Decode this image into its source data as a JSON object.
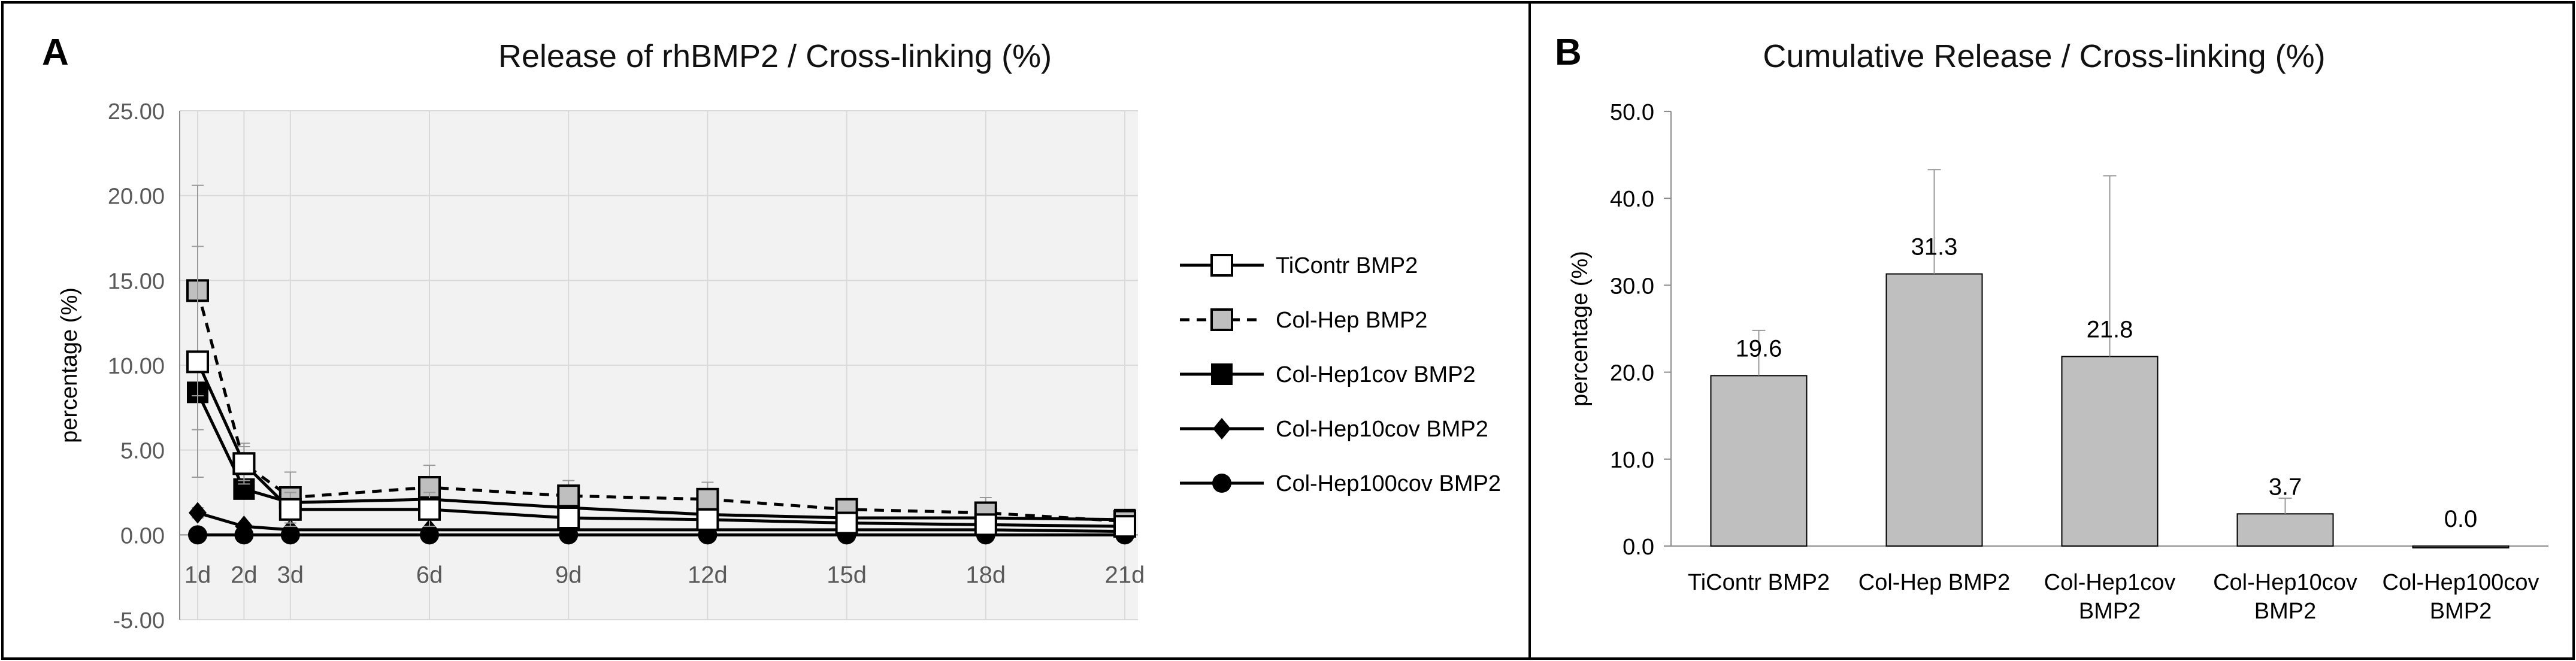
{
  "chart_data": [
    {
      "panel": "A",
      "type": "line",
      "title": "Release of rhBMP2 / Cross-linking (%)",
      "xlabel": "",
      "ylabel": "percentage (%)",
      "ylim": [
        -5,
        25
      ],
      "ytick_values": [
        -5,
        0,
        5,
        10,
        15,
        20,
        25
      ],
      "ytick_labels": [
        "-5.00",
        "0.00",
        "5.00",
        "10.00",
        "15.00",
        "20.00",
        "25.00"
      ],
      "x_days": [
        1,
        2,
        3,
        6,
        9,
        12,
        15,
        18,
        21
      ],
      "categories": [
        "1d",
        "2d",
        "3d",
        "6d",
        "9d",
        "12d",
        "15d",
        "18d",
        "21d"
      ],
      "grid": true,
      "legend_position": "right",
      "series": [
        {
          "name": "TiContr BMP2",
          "style": "solid",
          "marker": "open-square",
          "values": [
            10.2,
            4.2,
            1.5,
            1.5,
            1.0,
            0.9,
            0.7,
            0.6,
            0.5
          ],
          "errors": [
            6.8,
            1.0,
            1.0,
            1.0,
            0.5,
            0.5,
            0.4,
            0.4,
            0.3
          ]
        },
        {
          "name": "Col-Hep BMP2",
          "style": "dashed",
          "marker": "gray-square",
          "values": [
            14.4,
            4.2,
            2.2,
            2.8,
            2.3,
            2.1,
            1.5,
            1.3,
            0.8
          ],
          "errors": [
            6.2,
            1.2,
            1.5,
            1.3,
            0.9,
            1.0,
            0.6,
            0.9,
            0.3
          ]
        },
        {
          "name": "Col-Hep1cov BMP2",
          "style": "solid",
          "marker": "filled-square",
          "values": [
            8.4,
            2.7,
            1.9,
            2.1,
            1.6,
            1.2,
            1.0,
            1.0,
            0.9
          ],
          "errors": [
            2.2,
            0.5,
            0.5,
            0.6,
            0.4,
            0.4,
            0.3,
            0.4,
            0.2
          ]
        },
        {
          "name": "Col-Hep10cov BMP2",
          "style": "solid",
          "marker": "diamond",
          "values": [
            1.3,
            0.5,
            0.3,
            0.3,
            0.3,
            0.3,
            0.3,
            0.3,
            0.2
          ],
          "errors": [
            0.3,
            0.2,
            0.1,
            0.1,
            0.1,
            0.1,
            0.1,
            0.1,
            0.1
          ]
        },
        {
          "name": "Col-Hep100cov BMP2",
          "style": "solid",
          "marker": "circle",
          "values": [
            0.0,
            0.0,
            0.0,
            0.0,
            0.0,
            0.0,
            0.0,
            0.0,
            0.0
          ],
          "errors": [
            0,
            0,
            0,
            0,
            0,
            0,
            0,
            0,
            0
          ]
        }
      ]
    },
    {
      "panel": "B",
      "type": "bar",
      "title": "Cumulative Release / Cross-linking (%)",
      "xlabel": "",
      "ylabel": "percentage (%)",
      "ylim": [
        0,
        50
      ],
      "ytick_values": [
        0,
        10,
        20,
        30,
        40,
        50
      ],
      "ytick_labels": [
        "0.0",
        "10.0",
        "20.0",
        "30.0",
        "40.0",
        "50.0"
      ],
      "categories": [
        [
          "TiContr BMP2"
        ],
        [
          "Col-Hep BMP2"
        ],
        [
          "Col-Hep1cov",
          "BMP2"
        ],
        [
          "Col-Hep10cov",
          "BMP2"
        ],
        [
          "Col-Hep100cov",
          "BMP2"
        ]
      ],
      "values": [
        19.6,
        31.3,
        21.8,
        3.7,
        0.0
      ],
      "value_labels": [
        "19.6",
        "31.3",
        "21.8",
        "3.7",
        "0.0"
      ],
      "errors": [
        5.2,
        12.0,
        20.8,
        1.8,
        0.0
      ],
      "bar_color": "#bfbfbf",
      "grid": false
    }
  ],
  "colors": {
    "axis": "#8c8c8c",
    "grid": "#d9d9d9",
    "plot_bg": "#f2f2f2",
    "series_line": "#000000",
    "gray_marker": "#bfbfbf",
    "error_bar": "#999999",
    "border": "#000000"
  }
}
